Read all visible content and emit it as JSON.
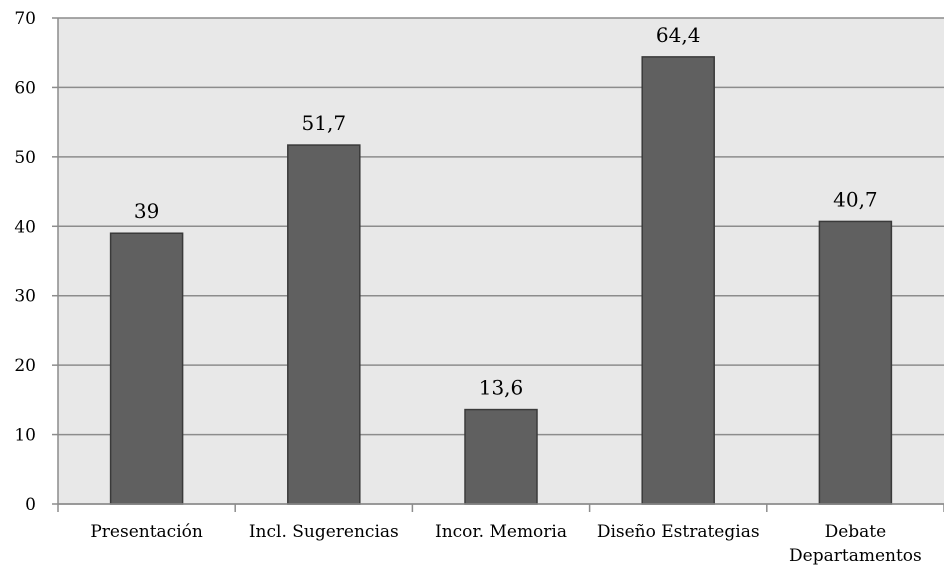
{
  "chart_data": {
    "type": "bar",
    "categories": [
      "Presentación",
      "Incl. Sugerencias",
      "Incor. Memoria",
      "Diseño Estrategias",
      "Debate Departamentos"
    ],
    "values": [
      39,
      51.7,
      13.6,
      64.4,
      40.7
    ],
    "value_labels": [
      "39",
      "51,7",
      "13,6",
      "64,4",
      "40,7"
    ],
    "color": "#606060",
    "ylim": [
      0,
      70
    ],
    "yticks": [
      0,
      10,
      20,
      30,
      40,
      50,
      60,
      70
    ],
    "grid": true
  }
}
